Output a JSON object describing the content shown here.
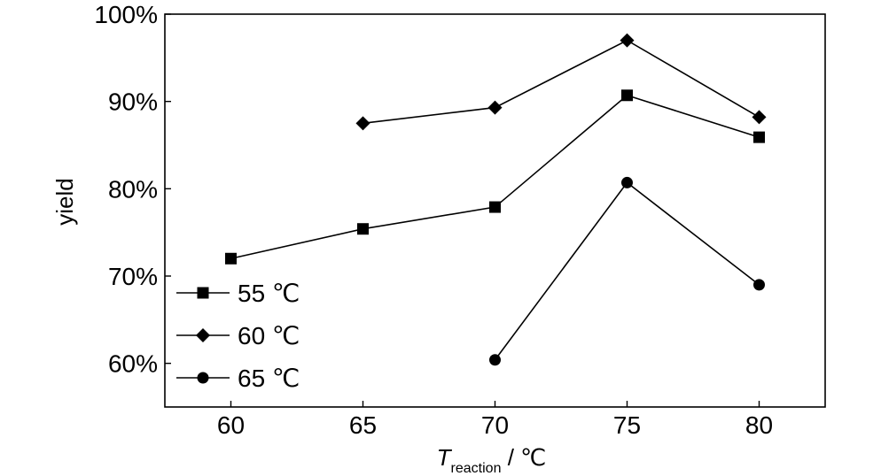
{
  "chart_data": {
    "type": "line",
    "title": "",
    "xlabel": {
      "main": "T",
      "subscript": "reaction",
      "unit": " / ℃"
    },
    "ylabel": "yield",
    "xlim": [
      57.5,
      82.5
    ],
    "ylim": [
      55,
      100
    ],
    "x_ticks": [
      60,
      65,
      70,
      75,
      80
    ],
    "x_tick_labels": [
      "60",
      "65",
      "70",
      "75",
      "80"
    ],
    "y_ticks": [
      60,
      70,
      80,
      90,
      100
    ],
    "y_tick_labels": [
      "60%",
      "70%",
      "80%",
      "90%",
      "100%"
    ],
    "grid": false,
    "legend_position": "bottom-left",
    "series": [
      {
        "name": "55 ℃",
        "marker": "square",
        "x": [
          60,
          65,
          70,
          75,
          80
        ],
        "y": [
          72.0,
          75.4,
          77.9,
          90.7,
          85.9
        ]
      },
      {
        "name": "60 ℃",
        "marker": "diamond",
        "x": [
          65,
          70,
          75,
          80
        ],
        "y": [
          87.5,
          89.3,
          97.0,
          88.2
        ]
      },
      {
        "name": "65 ℃",
        "marker": "circle",
        "x": [
          70,
          75,
          80
        ],
        "y": [
          60.4,
          80.7,
          69.0
        ]
      }
    ]
  }
}
